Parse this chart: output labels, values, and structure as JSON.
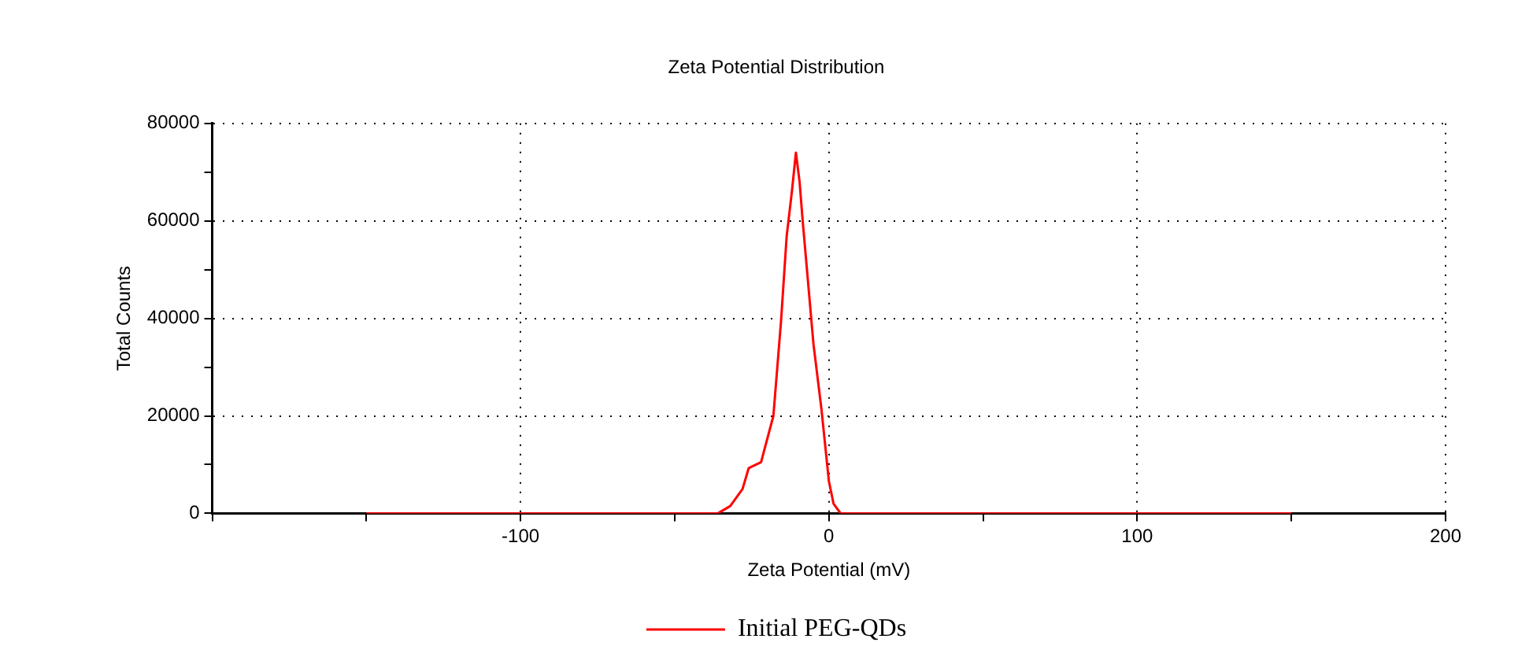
{
  "chart_data": {
    "type": "line",
    "title": "Zeta Potential Distribution",
    "xlabel": "Zeta Potential (mV)",
    "ylabel": "Total Counts",
    "xlim": [
      -200,
      200
    ],
    "xticks": [
      {
        "value": -200,
        "label": null
      },
      {
        "value": -150,
        "label": null
      },
      -100,
      {
        "value": -50,
        "label": null
      },
      0,
      {
        "value": 50,
        "label": null
      },
      100,
      {
        "value": 150,
        "label": null
      },
      200
    ],
    "ylim": [
      0,
      80000
    ],
    "yticks": [
      0,
      {
        "value": 10000,
        "label": null
      },
      20000,
      {
        "value": 30000,
        "label": null
      },
      40000,
      {
        "value": 50000,
        "label": null
      },
      60000,
      {
        "value": 70000,
        "label": null
      },
      80000
    ],
    "grid": true,
    "legend": "bottom",
    "marker": "none",
    "line_style": "solid",
    "series": [
      {
        "name": "Initial PEG-QDs",
        "color": "#ff0000",
        "x": [
          -150,
          -36,
          -32,
          -28,
          -26,
          -22,
          -18,
          -15.5,
          -13.7,
          -12,
          -10.7,
          -9.5,
          -8.5,
          -5,
          -2.4,
          0,
          1.5,
          3.8,
          150
        ],
        "values": [
          0,
          0,
          1500,
          5000,
          9300,
          10500,
          20000,
          39600,
          56800,
          66000,
          74000,
          68000,
          60000,
          34700,
          21300,
          6600,
          2000,
          0,
          0
        ]
      }
    ]
  }
}
